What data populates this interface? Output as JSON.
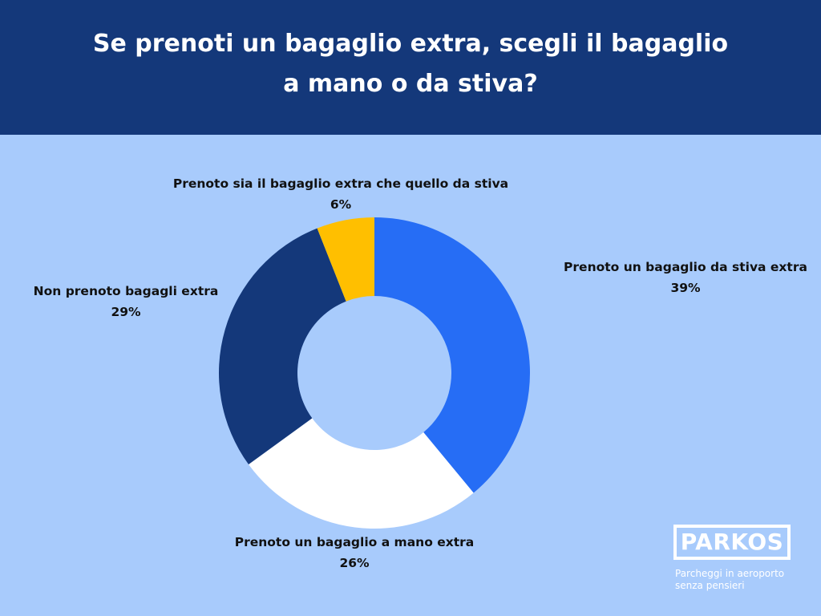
{
  "header": {
    "title_line1": "Se prenoti un bagaglio extra, scegli il bagaglio",
    "title_line2": "a mano o da stiva?"
  },
  "chart_data": {
    "type": "pie",
    "style": "donut",
    "categories": [
      "Prenoto un bagaglio da stiva extra",
      "Prenoto un bagaglio a mano extra",
      "Non prenoto bagagli extra",
      "Prenoto sia il bagaglio extra che quello da stiva"
    ],
    "values": [
      39,
      26,
      29,
      6
    ],
    "value_labels": [
      "39%",
      "26%",
      "29%",
      "6%"
    ],
    "colors": [
      "#266df5",
      "#ffffff",
      "#14387a",
      "#ffbf00"
    ]
  },
  "logo": {
    "name": "PARKOS",
    "tagline_line1": "Parcheggi in aeroporto",
    "tagline_line2": "senza pensieri"
  },
  "colors": {
    "background": "#a8cbfc",
    "header": "#14387a"
  }
}
